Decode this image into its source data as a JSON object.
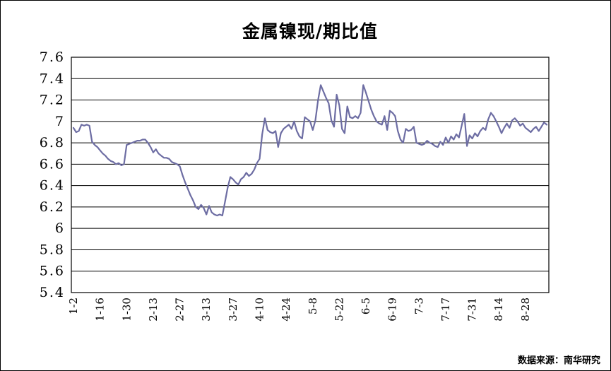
{
  "page": {
    "background": "#ffffff",
    "frame_border": "#000000"
  },
  "chart_data": {
    "type": "line",
    "title": "金属镍现/期比值",
    "source_note": "数据来源：南华研究",
    "legend": "none",
    "grid": "horizontal",
    "line_color": "#6d6da3",
    "grid_color": "#000000",
    "ylim": [
      5.4,
      7.6
    ],
    "y_step": 0.2,
    "y_tick_labels": [
      "7.6",
      "7.4",
      "7.2",
      "7",
      "6.8",
      "6.6",
      "6.4",
      "6.2",
      "6",
      "5.8",
      "5.6",
      "5.4"
    ],
    "x_tick_interval": 10,
    "x_tick_labels": [
      "1-2",
      "1-16",
      "1-30",
      "2-13",
      "2-27",
      "3-13",
      "3-27",
      "4-10",
      "4-24",
      "5-8",
      "5-22",
      "6-5",
      "6-19",
      "7-3",
      "7-17",
      "7-31",
      "8-14",
      "8-28"
    ],
    "values": [
      6.94,
      6.9,
      6.91,
      6.97,
      6.96,
      6.97,
      6.96,
      6.81,
      6.78,
      6.76,
      6.73,
      6.7,
      6.68,
      6.65,
      6.63,
      6.62,
      6.6,
      6.61,
      6.59,
      6.6,
      6.78,
      6.79,
      6.8,
      6.81,
      6.82,
      6.82,
      6.83,
      6.83,
      6.8,
      6.76,
      6.71,
      6.74,
      6.7,
      6.68,
      6.66,
      6.66,
      6.65,
      6.62,
      6.61,
      6.6,
      6.58,
      6.5,
      6.43,
      6.37,
      6.31,
      6.26,
      6.2,
      6.18,
      6.22,
      6.19,
      6.13,
      6.21,
      6.15,
      6.13,
      6.12,
      6.13,
      6.12,
      6.25,
      6.38,
      6.48,
      6.46,
      6.43,
      6.41,
      6.46,
      6.48,
      6.52,
      6.49,
      6.51,
      6.55,
      6.61,
      6.65,
      6.88,
      7.03,
      6.92,
      6.9,
      6.89,
      6.91,
      6.76,
      6.89,
      6.93,
      6.95,
      6.97,
      6.93,
      7.0,
      6.91,
      6.86,
      6.84,
      7.04,
      7.02,
      7.0,
      6.92,
      7.01,
      7.2,
      7.34,
      7.28,
      7.22,
      7.17,
      7.01,
      6.95,
      7.25,
      7.15,
      6.93,
      6.89,
      7.14,
      7.04,
      7.03,
      7.05,
      7.03,
      7.08,
      7.34,
      7.27,
      7.19,
      7.11,
      7.05,
      7.0,
      6.98,
      6.97,
      7.05,
      6.92,
      7.1,
      7.08,
      7.05,
      6.91,
      6.83,
      6.8,
      6.93,
      6.91,
      6.92,
      6.95,
      6.8,
      6.79,
      6.78,
      6.79,
      6.82,
      6.8,
      6.79,
      6.77,
      6.76,
      6.81,
      6.78,
      6.85,
      6.8,
      6.86,
      6.83,
      6.88,
      6.85,
      6.96,
      7.07,
      6.77,
      6.87,
      6.84,
      6.89,
      6.86,
      6.91,
      6.94,
      6.92,
      7.02,
      7.08,
      7.05,
      7.0,
      6.95,
      6.89,
      6.94,
      6.98,
      6.94,
      7.01,
      7.03,
      7.0,
      6.96,
      6.98,
      6.94,
      6.92,
      6.9,
      6.93,
      6.95,
      6.91,
      6.95,
      6.99,
      6.97
    ]
  }
}
